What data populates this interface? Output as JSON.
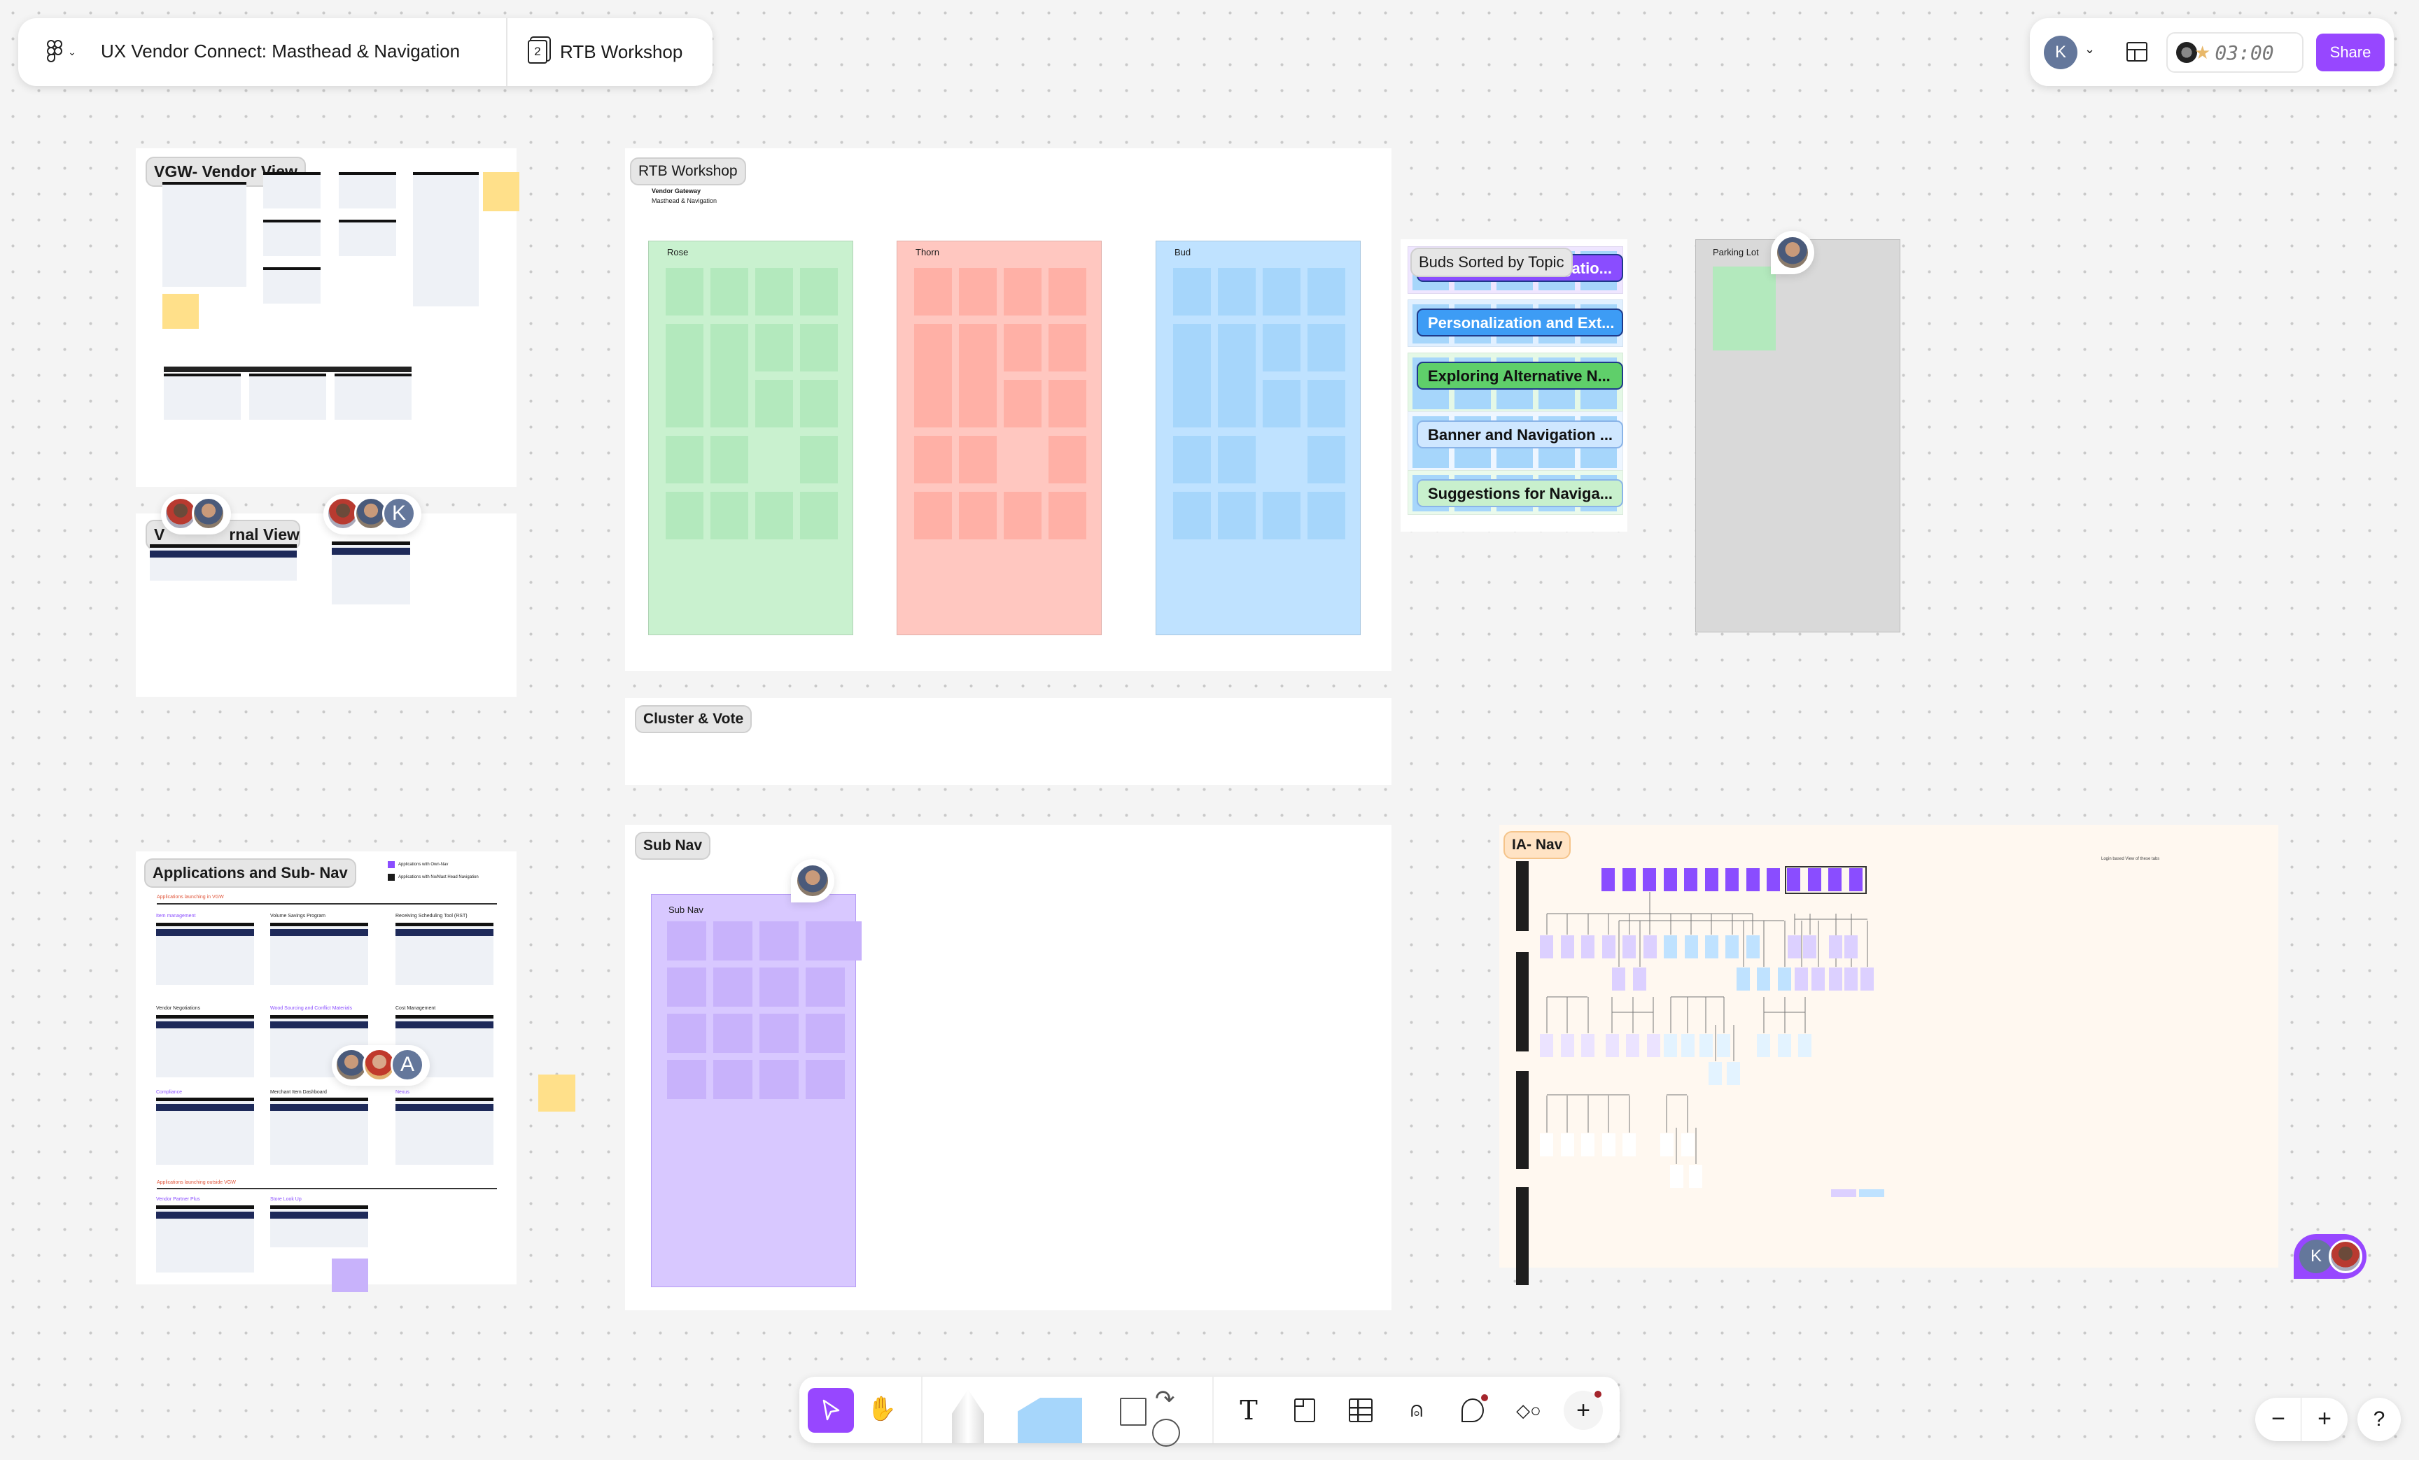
{
  "header": {
    "file_title": "UX Vendor Connect: Masthead & Navigation",
    "page_count": "2",
    "page_name": "RTB Workshop"
  },
  "top_right": {
    "user_initial": "K",
    "timer": "03:00",
    "share_label": "Share"
  },
  "frames": {
    "vgw_vendor_view": "VGW- Vendor View",
    "internal_view": "VGW Internal View",
    "internal_view_visible": "V",
    "internal_view_visible_tail": "rnal View",
    "rtb_workshop": {
      "label": "RTB Workshop",
      "subtitle_1": "Vendor Gateway",
      "subtitle_2": "Masthead & Navigation",
      "columns": [
        {
          "title": "Rose",
          "color": "#c9f1cf",
          "sticky": "#b3e9bd"
        },
        {
          "title": "Thorn",
          "color": "#ffc7c0",
          "sticky": "#ffb0a6"
        },
        {
          "title": "Bud",
          "color": "#bfe2ff",
          "sticky": "#a6d6fb"
        }
      ]
    },
    "buds_sorted": {
      "label": "Buds Sorted by Topic",
      "topics": [
        {
          "label": "Navigatio...",
          "bg": "#8a4dff",
          "fg": "#ffffff",
          "section": "#efe6ff"
        },
        {
          "label": "Personalization and Ext...",
          "bg": "#3d9cf5",
          "fg": "#ffffff",
          "section": "#e1f0ff"
        },
        {
          "label": "Exploring Alternative N...",
          "bg": "#5fcf6a",
          "fg": "#111111",
          "section": "#e4f8e6"
        },
        {
          "label": "Banner and Navigation ...",
          "bg": "#cfe7ff",
          "fg": "#111111",
          "section": "#eef6ff"
        },
        {
          "label": "Suggestions for Naviga...",
          "bg": "#c8f0cd",
          "fg": "#111111",
          "section": "#eafaec"
        }
      ]
    },
    "parking_lot": {
      "label": "Parking Lot"
    },
    "cluster_vote": {
      "label": "Cluster & Vote"
    },
    "sub_nav": {
      "label": "Sub Nav",
      "board_title": "Sub Nav"
    },
    "applications": {
      "label": "Applications and Sub- Nav",
      "legend": [
        {
          "label": "Applications with Own-Nav",
          "color": "#8a4dff"
        },
        {
          "label": "Applications with No/Mast Head Navigation",
          "color": "#1a1a1a"
        }
      ],
      "section_inside": "Applications launching in VGW",
      "section_outside": "Applications launching outside VGW",
      "apps_inside": [
        {
          "name": "Item management",
          "own_nav": true
        },
        {
          "name": "Volume Savings Program",
          "own_nav": false
        },
        {
          "name": "Receiving Scheduling Tool (RST)",
          "own_nav": false
        },
        {
          "name": "Vendor Negotiations",
          "own_nav": false
        },
        {
          "name": "Wood Sourcing and Conflict Materials",
          "own_nav": true
        },
        {
          "name": "Cost Management",
          "own_nav": false
        },
        {
          "name": "Compliance",
          "own_nav": true
        },
        {
          "name": "Merchant Item Dashboard",
          "own_nav": false
        },
        {
          "name": "Nexus",
          "own_nav": true
        }
      ],
      "apps_outside": [
        {
          "name": "Vendor Partner Plus",
          "own_nav": true
        },
        {
          "name": "Store Look Up",
          "own_nav": true
        }
      ]
    },
    "ia_nav": {
      "label": "IA- Nav",
      "note": "Login based View of these tabs"
    }
  },
  "collaborators": {
    "initial_k": "K",
    "initial_a": "A"
  },
  "toolbar": {
    "tools": [
      "select",
      "hand",
      "pen",
      "sticky-note",
      "shapes",
      "connector",
      "text",
      "section",
      "table",
      "stamp",
      "comment",
      "templates",
      "more"
    ],
    "active_tool": "select",
    "accent": "#9747ff"
  },
  "zoom_controls": {
    "zoom_out": "−",
    "zoom_in": "+",
    "help": "?"
  }
}
